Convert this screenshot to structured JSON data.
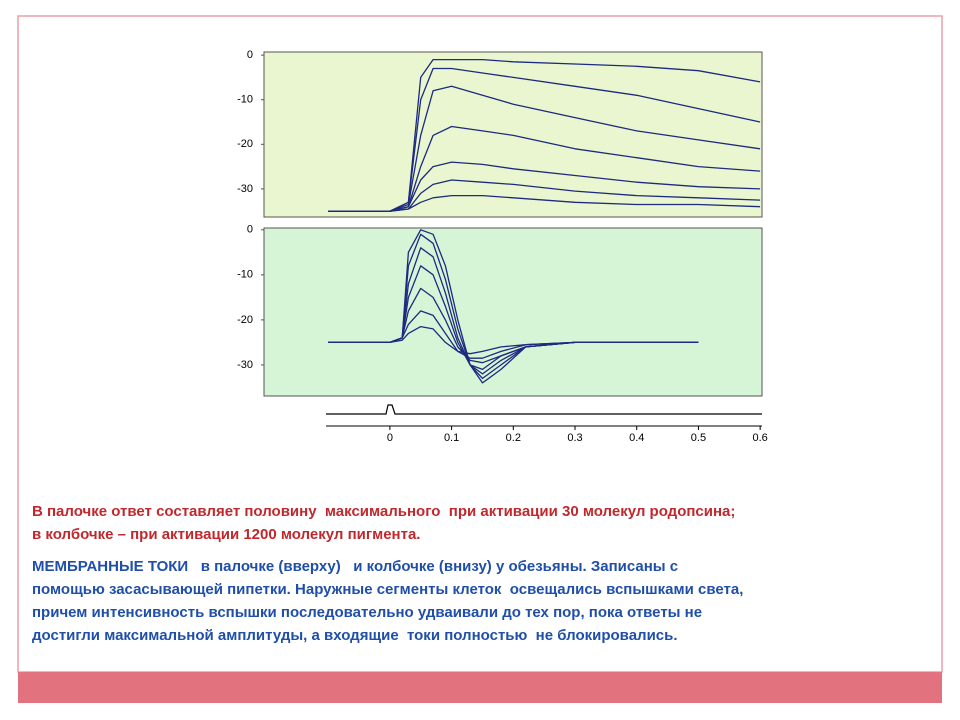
{
  "chart_data": [
    {
      "type": "line",
      "xlim": [
        -0.204,
        0.603
      ],
      "ylim": [
        -36.3,
        0.7
      ],
      "yticks": [
        0,
        -10,
        -20,
        -30
      ],
      "x": [
        -0.1,
        -0.05,
        0,
        0.03,
        0.05,
        0.07,
        0.1,
        0.15,
        0.2,
        0.3,
        0.4,
        0.5,
        0.6
      ],
      "series": [
        {
          "color": "#1c2a80",
          "values": [
            -35,
            -35,
            -35,
            -33,
            -5,
            -1,
            -1,
            -1,
            -1.5,
            -2,
            -2.5,
            -3.5,
            -6
          ]
        },
        {
          "color": "#1c2a80",
          "values": [
            -35,
            -35,
            -35,
            -33,
            -10,
            -3,
            -3,
            -4,
            -5,
            -7,
            -9,
            -12,
            -15
          ]
        },
        {
          "color": "#1c2a80",
          "values": [
            -35,
            -35,
            -35,
            -33.5,
            -18,
            -8,
            -7,
            -9,
            -11,
            -14,
            -17,
            -19,
            -21
          ]
        },
        {
          "color": "#1c2a80",
          "values": [
            -35,
            -35,
            -35,
            -34,
            -25,
            -18,
            -16,
            -17,
            -18,
            -21,
            -23,
            -25,
            -26
          ]
        },
        {
          "color": "#1c2a80",
          "values": [
            -35,
            -35,
            -35,
            -34,
            -28,
            -25,
            -24,
            -24.5,
            -25.5,
            -27,
            -28.5,
            -29.5,
            -30
          ]
        },
        {
          "color": "#1c2a80",
          "values": [
            -35,
            -35,
            -35,
            -34.5,
            -31,
            -29,
            -28,
            -28.5,
            -29,
            -30.5,
            -31.5,
            -32,
            -32.5
          ]
        },
        {
          "color": "#1c2a80",
          "values": [
            -35,
            -35,
            -35,
            -34.5,
            -33,
            -32,
            -31.5,
            -31.5,
            -32,
            -33,
            -33.5,
            -33.5,
            -34
          ]
        }
      ]
    },
    {
      "type": "line",
      "xlim": [
        -0.204,
        0.603
      ],
      "ylim": [
        -36.9,
        0.4
      ],
      "yticks": [
        0,
        -10,
        -20,
        -30
      ],
      "xticks": [
        0,
        0.1,
        0.2,
        0.3,
        0.4,
        0.5,
        0.6
      ],
      "x": [
        -0.1,
        0,
        0.02,
        0.03,
        0.05,
        0.07,
        0.09,
        0.11,
        0.13,
        0.15,
        0.18,
        0.22,
        0.3,
        0.5
      ],
      "series": [
        {
          "color": "#1c2a80",
          "values": [
            -25,
            -25,
            -24,
            -5,
            0,
            -1,
            -8,
            -20,
            -30,
            -34,
            -31,
            -26,
            -25,
            -25
          ]
        },
        {
          "color": "#1c2a80",
          "values": [
            -25,
            -25,
            -24,
            -8,
            -1,
            -3,
            -11,
            -22,
            -30,
            -33,
            -30,
            -26,
            -25,
            -25
          ]
        },
        {
          "color": "#1c2a80",
          "values": [
            -25,
            -25,
            -24,
            -12,
            -4,
            -6,
            -14,
            -24,
            -30,
            -32,
            -29,
            -26,
            -25,
            -25
          ]
        },
        {
          "color": "#1c2a80",
          "values": [
            -25,
            -25,
            -24,
            -15,
            -8,
            -10,
            -17,
            -25,
            -30,
            -31,
            -28,
            -26,
            -25,
            -25
          ]
        },
        {
          "color": "#1c2a80",
          "values": [
            -25,
            -25,
            -24,
            -18,
            -13,
            -15,
            -20,
            -26,
            -29,
            -29.5,
            -28,
            -26,
            -25,
            -25
          ]
        },
        {
          "color": "#1c2a80",
          "values": [
            -25,
            -25,
            -24,
            -21,
            -18,
            -19,
            -23,
            -27,
            -28.5,
            -28.5,
            -27,
            -25.5,
            -25,
            -25
          ]
        },
        {
          "color": "#1c2a80",
          "values": [
            -25,
            -25,
            -24.5,
            -23,
            -21.5,
            -22,
            -25,
            -27,
            -27.5,
            -27,
            -26,
            -25.5,
            -25,
            -25
          ]
        }
      ]
    }
  ],
  "text": {
    "note": [
      "В палочке ответ составляет половину  максимального  при активации 30 молекул родопсина;",
      "в колбочке – при активации 1200 молекул пигмента."
    ],
    "description": [
      "МЕМБРАННЫЕ ТОКИ   в палочке (вверху)   и колбочке (внизу) у обезьяны. Записаны с",
      "помощью засасывающей пипетки. Наружные сегменты клеток  освещались вспышками света,",
      "причем интенсивность вспышки последовательно удваивали до тех пор, пока ответы не",
      "достигли максимальной амплитуды, а входящие  токи полностью  не блокировались."
    ]
  }
}
